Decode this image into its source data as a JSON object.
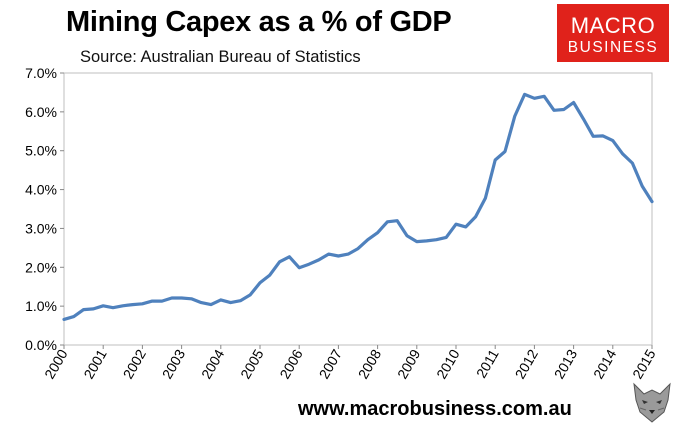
{
  "chart_data": {
    "type": "line",
    "title": "Mining Capex as a % of GDP",
    "subtitle": "Source: Australian Bureau of Statistics",
    "xlabel": "",
    "ylabel": "",
    "ylim": [
      0,
      7
    ],
    "yticks": [
      "0.0%",
      "1.0%",
      "2.0%",
      "3.0%",
      "4.0%",
      "5.0%",
      "6.0%",
      "7.0%"
    ],
    "xticks": [
      "2000",
      "2001",
      "2002",
      "2003",
      "2004",
      "2005",
      "2006",
      "2007",
      "2008",
      "2009",
      "2010",
      "2011",
      "2012",
      "2013",
      "2014",
      "2015"
    ],
    "grid": false,
    "legend": "none",
    "series": [
      {
        "color": "#4f81bd",
        "x": [
          2000.0,
          2000.25,
          2000.5,
          2000.75,
          2001.0,
          2001.25,
          2001.5,
          2001.75,
          2002.0,
          2002.25,
          2002.5,
          2002.75,
          2003.0,
          2003.25,
          2003.5,
          2003.75,
          2004.0,
          2004.25,
          2004.5,
          2004.75,
          2005.0,
          2005.25,
          2005.5,
          2005.75,
          2006.0,
          2006.25,
          2006.5,
          2006.75,
          2007.0,
          2007.25,
          2007.5,
          2007.75,
          2008.0,
          2008.25,
          2008.5,
          2008.75,
          2009.0,
          2009.25,
          2009.5,
          2009.75,
          2010.0,
          2010.25,
          2010.5,
          2010.75,
          2011.0,
          2011.25,
          2011.5,
          2011.75,
          2012.0,
          2012.25,
          2012.5,
          2012.75,
          2013.0,
          2013.25,
          2013.5,
          2013.75,
          2014.0,
          2014.25,
          2014.5,
          2014.75,
          2015.0
        ],
        "values": [
          0.66,
          0.73,
          0.91,
          0.93,
          1.01,
          0.96,
          1.01,
          1.04,
          1.06,
          1.13,
          1.13,
          1.21,
          1.21,
          1.19,
          1.09,
          1.04,
          1.16,
          1.09,
          1.14,
          1.29,
          1.6,
          1.8,
          2.14,
          2.27,
          1.99,
          2.08,
          2.19,
          2.34,
          2.29,
          2.34,
          2.48,
          2.71,
          2.89,
          3.17,
          3.2,
          2.81,
          2.66,
          2.68,
          2.71,
          2.77,
          3.11,
          3.04,
          3.3,
          3.78,
          4.76,
          4.98,
          5.89,
          6.45,
          6.35,
          6.4,
          6.04,
          6.06,
          6.24,
          5.82,
          5.37,
          5.38,
          5.26,
          4.92,
          4.68,
          4.09,
          3.69
        ]
      }
    ]
  },
  "branding": {
    "logo_line1": "MACRO",
    "logo_line2": "BUSINESS",
    "website": "www.macrobusiness.com.au",
    "logo_color": "#e0221b"
  }
}
